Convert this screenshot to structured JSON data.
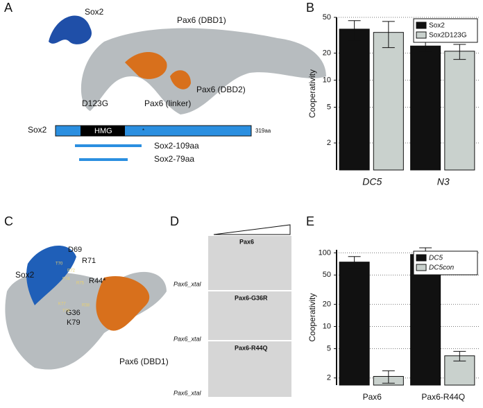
{
  "panels": {
    "a": "A",
    "b": "B",
    "c": "C",
    "d": "D",
    "e": "E"
  },
  "panel_a": {
    "sox2": "Sox2",
    "pax6_dbd1": "Pax6 (DBD1)",
    "d123g": "D123G",
    "pax6_linker": "Pax6 (linker)",
    "pax6_dbd2": "Pax6 (DBD2)",
    "domain_bar": {
      "label": "Sox2",
      "hmg": "HMG",
      "star": "*",
      "length": "319aa"
    },
    "constructs": [
      "Sox2-109aa",
      "Sox2-79aa"
    ]
  },
  "panel_c": {
    "sox2": "Sox2",
    "pax6": "Pax6 (DBD1)",
    "residues": [
      "D69",
      "R71",
      "R44*",
      "K79",
      "G36",
      "T70",
      "R72",
      "F74",
      "R75",
      "K77",
      "T78",
      "R38"
    ]
  },
  "panel_d": {
    "gels": [
      {
        "title": "Pax6",
        "probe": "Pax6_xtal"
      },
      {
        "title": "Pax6-G36R",
        "probe": "Pax6_xtal"
      },
      {
        "title": "Pax6-R44Q",
        "probe": "Pax6_xtal"
      }
    ]
  },
  "chart_data": [
    {
      "type": "bar",
      "y_label": "Cooperativity",
      "categories": [
        "DC5",
        "N3"
      ],
      "log_scale": true,
      "grid": true,
      "legend": "top right",
      "ylim": [
        1,
        50
      ],
      "yticks": [
        2,
        5,
        10,
        20,
        50
      ],
      "series": [
        {
          "name": "Sox2",
          "color": "#111111",
          "values": [
            37,
            24
          ],
          "errors": [
            9,
            3
          ]
        },
        {
          "name": "Sox2D123G",
          "color": "#c9d1cd",
          "values": [
            34,
            21
          ],
          "errors": [
            11,
            4
          ]
        }
      ]
    },
    {
      "type": "bar",
      "y_label": "Cooperativity",
      "categories": [
        "Pax6",
        "Pax6-R44Q"
      ],
      "log_scale": true,
      "grid": true,
      "legend": "top right",
      "ylim": [
        1.6,
        110
      ],
      "yticks": [
        2,
        5,
        10,
        20,
        50,
        100
      ],
      "series": [
        {
          "name": "DC5",
          "color": "#111111",
          "values": [
            75,
            95
          ],
          "errors": [
            14,
            22
          ]
        },
        {
          "name": "DC5con",
          "color": "#c9d1cd",
          "values": [
            2.1,
            4
          ],
          "errors": [
            0.4,
            0.6
          ]
        }
      ]
    }
  ]
}
